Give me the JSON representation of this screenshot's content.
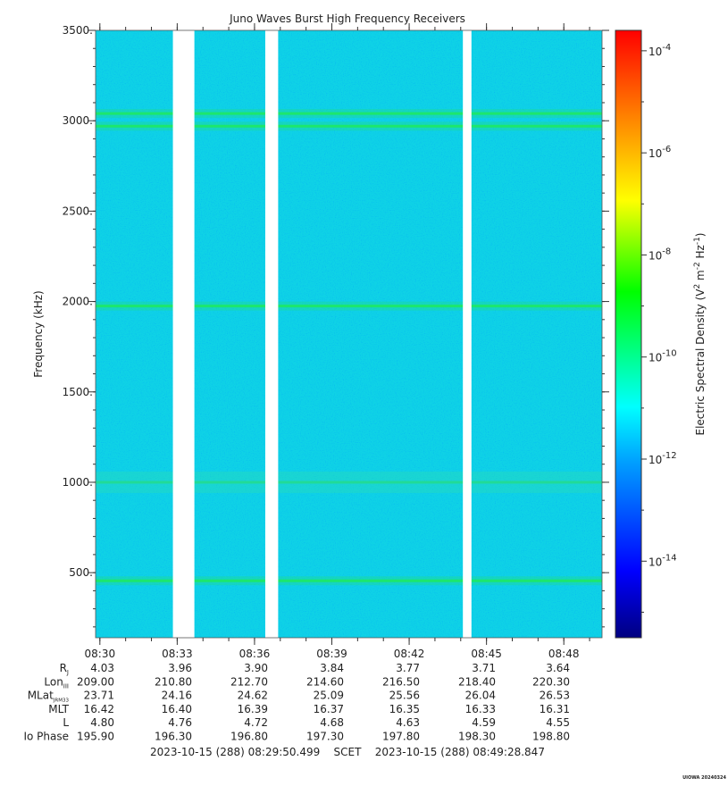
{
  "chart_data": {
    "type": "heatmap",
    "title": "Juno Waves Burst High Frequency Receivers",
    "ylabel": "Frequency (kHz)",
    "ylim": [
      140,
      3500
    ],
    "yticks": [
      500,
      1000,
      1500,
      2000,
      2500,
      3000,
      3500
    ],
    "ytick_labels": [
      "500.",
      "1000.",
      "1500.",
      "2000.",
      "2500.",
      "3000.",
      "3500."
    ],
    "y_minor_step": 100,
    "xticks": [
      "08:30",
      "08:33",
      "08:36",
      "08:39",
      "08:42",
      "08:45",
      "08:48"
    ],
    "xlim_minutes": [
      "08:29:50",
      "08:49:29"
    ],
    "colorbar": {
      "label_parts": {
        "main": "Electric Spectral Density (V",
        "sup1": "2",
        "mid1": " m",
        "sup2": "-2",
        "mid2": " Hz",
        "sup3": "-1",
        "end": ")"
      },
      "scale": "log",
      "range_exp": [
        -15.5,
        -3.6
      ],
      "ticks": [
        -4,
        -6,
        -8,
        -10,
        -12,
        -14
      ],
      "tick_base": "10"
    },
    "background_level": "~1e-12",
    "data_gaps": [
      {
        "start": "08:32:50",
        "end": "08:33:40"
      },
      {
        "start": "08:36:25",
        "end": "08:36:55"
      },
      {
        "start": "08:44:05",
        "end": "08:44:25"
      }
    ],
    "emission_lines_kHz": [
      {
        "freq": 3040,
        "level": "~1e-10"
      },
      {
        "freq": 2970,
        "level": "~1e-10"
      },
      {
        "freq": 1975,
        "level": "~1e-10"
      },
      {
        "freq": 1000,
        "level": "~1e-11"
      },
      {
        "freq": 455,
        "level": "~1e-10"
      }
    ]
  },
  "ephemeris": {
    "rows": [
      {
        "label": "R",
        "sub": "J",
        "values": [
          "4.03",
          "3.96",
          "3.90",
          "3.84",
          "3.77",
          "3.71",
          "3.64"
        ]
      },
      {
        "label": "Lon",
        "sub": "III",
        "values": [
          "209.00",
          "210.80",
          "212.70",
          "214.60",
          "216.50",
          "218.40",
          "220.30"
        ]
      },
      {
        "label": "MLat",
        "sub": "JRM33",
        "values": [
          "23.71",
          "24.16",
          "24.62",
          "25.09",
          "25.56",
          "26.04",
          "26.53"
        ]
      },
      {
        "label": "MLT",
        "sub": "",
        "values": [
          "16.42",
          "16.40",
          "16.39",
          "16.37",
          "16.35",
          "16.33",
          "16.31"
        ]
      },
      {
        "label": "L",
        "sub": "",
        "values": [
          "4.80",
          "4.76",
          "4.72",
          "4.68",
          "4.63",
          "4.59",
          "4.55"
        ]
      },
      {
        "label": "Io Phase",
        "sub": "",
        "values": [
          "195.90",
          "196.30",
          "196.80",
          "197.30",
          "197.80",
          "198.30",
          "198.80"
        ]
      }
    ]
  },
  "footer": {
    "time_range": "2023-10-15 (288) 08:29:50.499    SCET    2023-10-15 (288) 08:49:28.847",
    "credit": "UIOWA 20240324"
  }
}
